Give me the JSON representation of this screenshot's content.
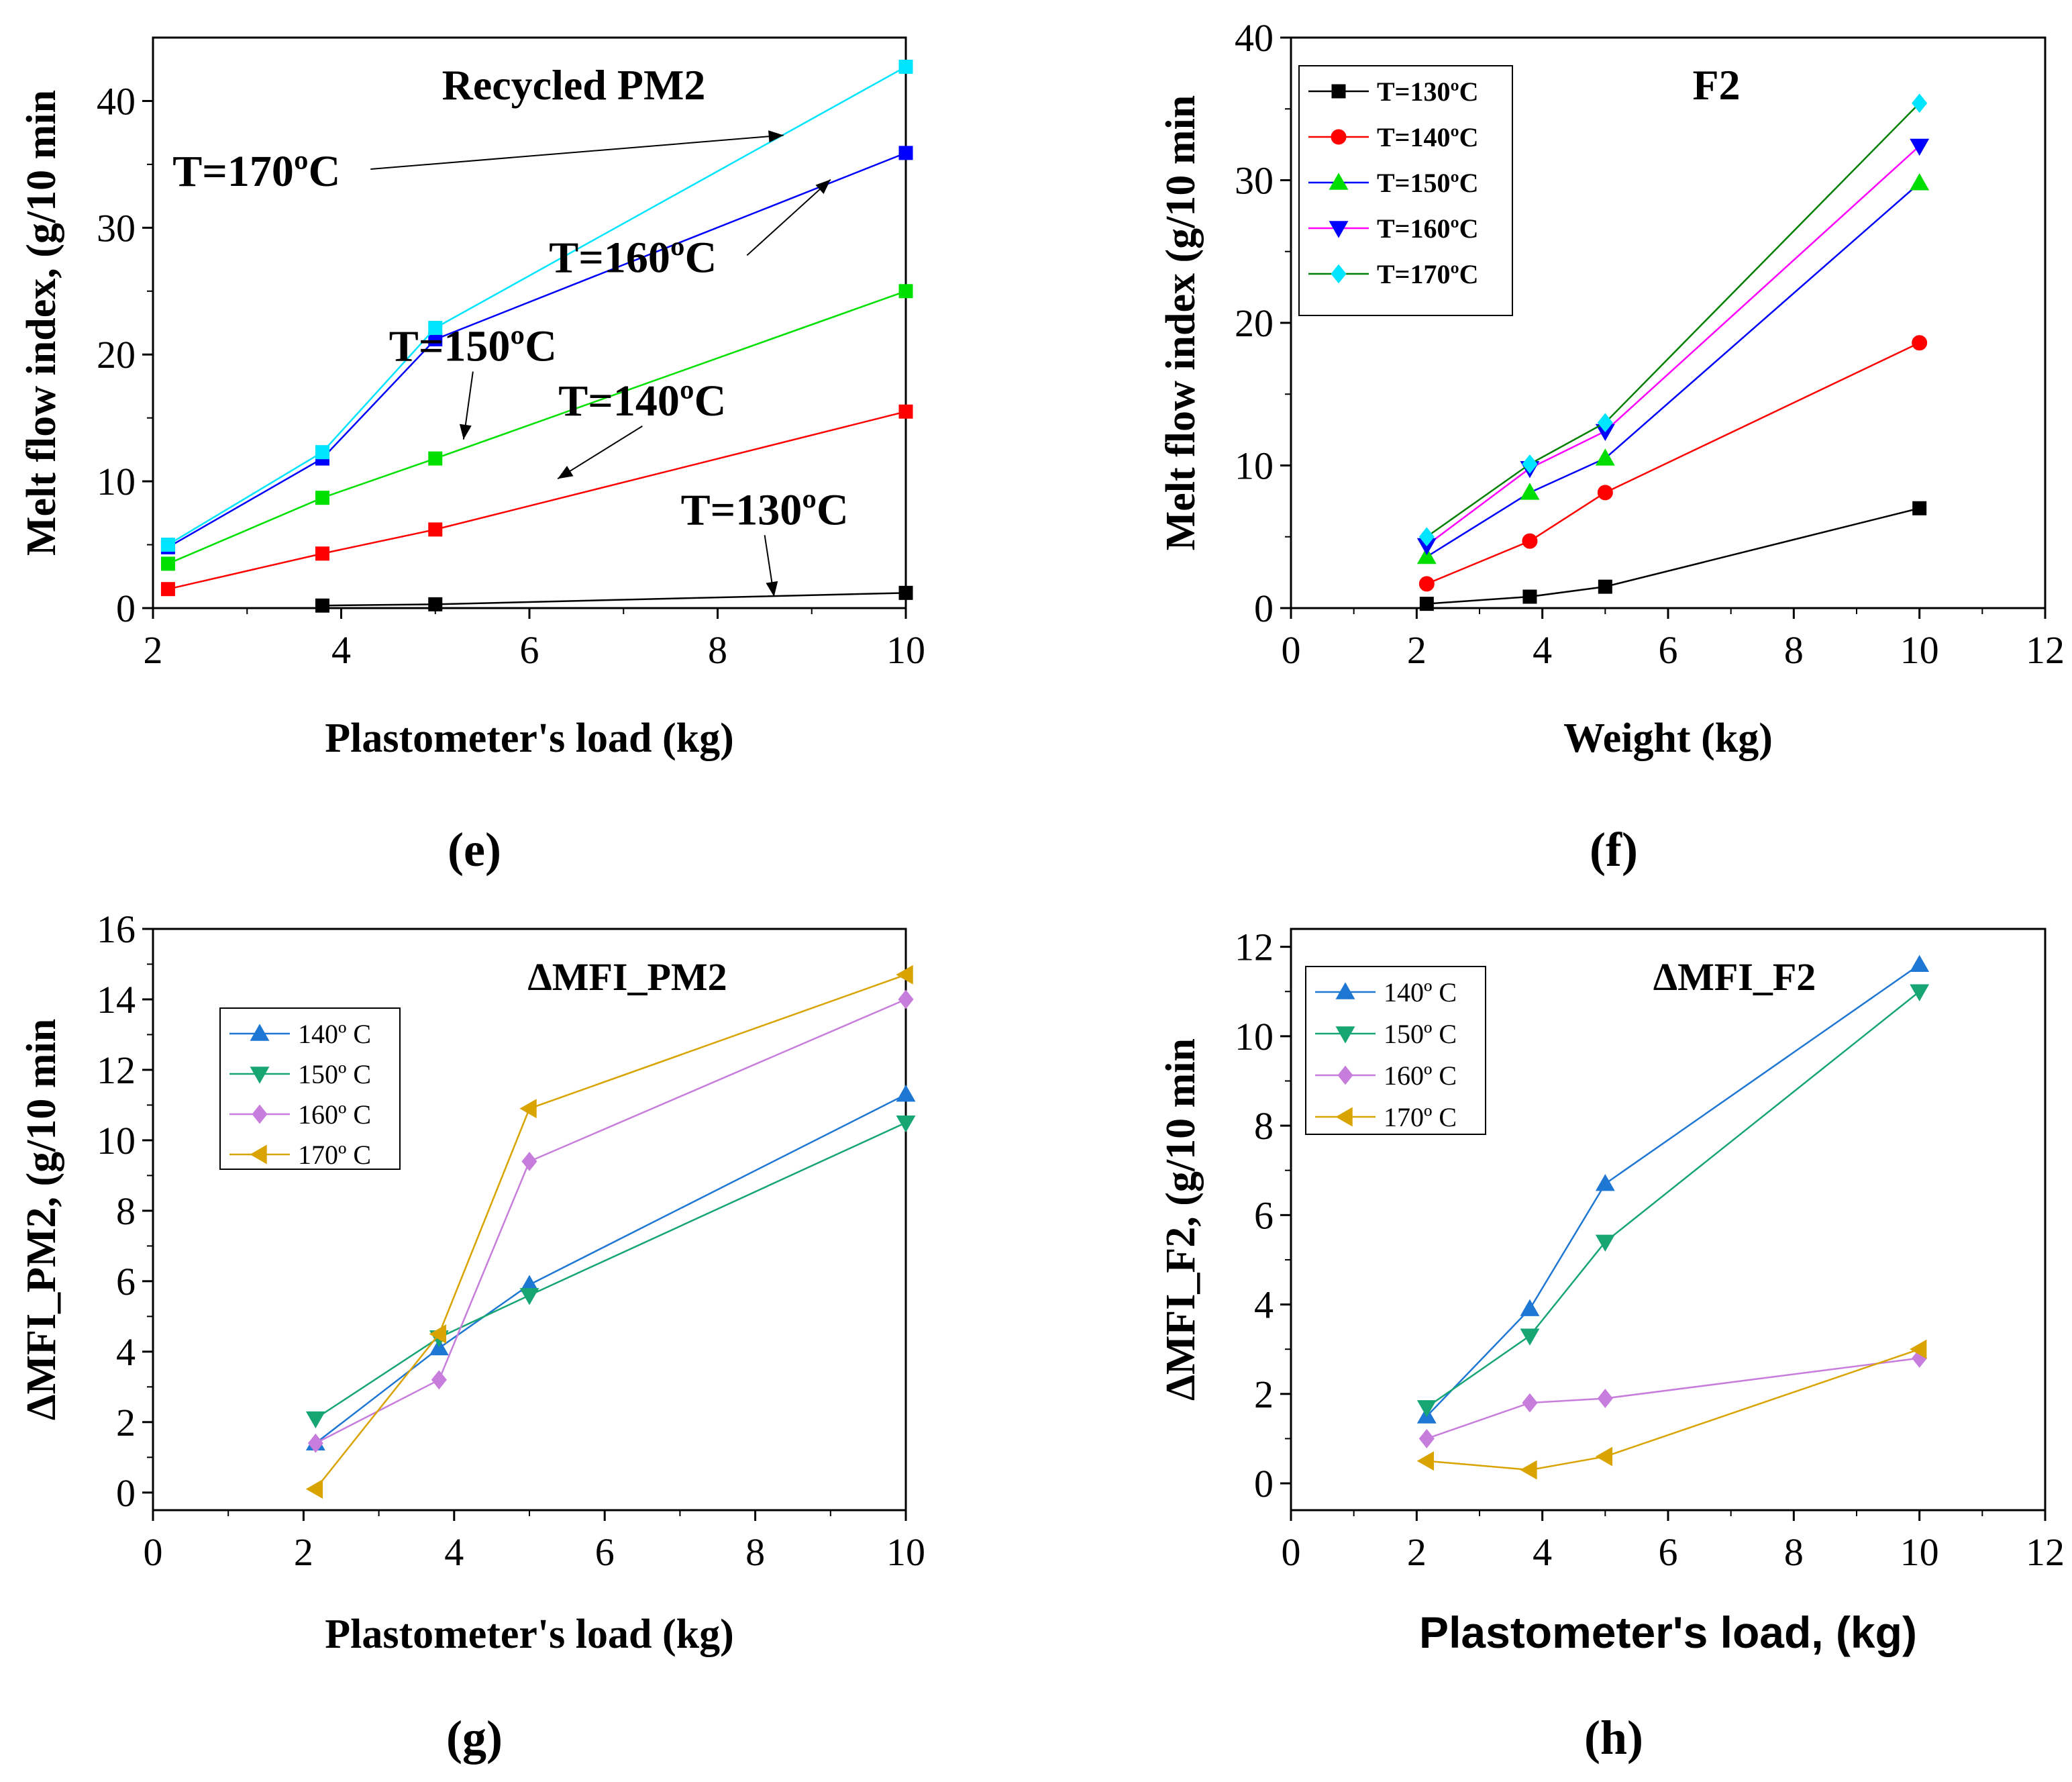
{
  "chart_data": [
    {
      "panel_label": "(e)",
      "type": "line",
      "title": "Recycled PM2",
      "xlabel": "Plastometer's load (kg)",
      "ylabel": "Melt flow index, (g/10 min",
      "xlim": [
        2,
        10
      ],
      "ylim": [
        0,
        45
      ],
      "xticks": [
        2,
        4,
        6,
        8,
        10
      ],
      "yticks": [
        0,
        10,
        20,
        30,
        40
      ],
      "legend": "none",
      "series": [
        {
          "color": "#000000",
          "marker": "square",
          "x": [
            3.8,
            5,
            10
          ],
          "y": [
            0.2,
            0.3,
            1.2
          ]
        },
        {
          "color": "#ff0000",
          "marker": "square",
          "x": [
            2.16,
            3.8,
            5,
            10
          ],
          "y": [
            1.5,
            4.3,
            6.2,
            15.5
          ]
        },
        {
          "color": "#00e000",
          "marker": "square",
          "x": [
            2.16,
            3.8,
            5,
            10
          ],
          "y": [
            3.5,
            8.7,
            11.8,
            25.0
          ]
        },
        {
          "color": "#0000ff",
          "marker": "square",
          "x": [
            2.16,
            3.8,
            5,
            10
          ],
          "y": [
            4.8,
            11.8,
            21.2,
            35.9
          ]
        },
        {
          "color": "#00e5ff",
          "marker": "square",
          "x": [
            2.16,
            3.8,
            5,
            10
          ],
          "y": [
            5.0,
            12.3,
            22.1,
            42.7
          ]
        }
      ],
      "annotations": [
        {
          "label": "T=170ºC",
          "text_at": [
            3.1,
            33.3
          ],
          "arrow_to": [
            8.7,
            37.3
          ]
        },
        {
          "label": "T=160ºC",
          "text_at": [
            7.1,
            26.5
          ],
          "arrow_to": [
            9.2,
            33.8
          ]
        },
        {
          "label": "T=150ºC",
          "text_at": [
            5.4,
            19.5
          ],
          "arrow_to": [
            5.3,
            13.3
          ]
        },
        {
          "label": "T=140ºC",
          "text_at": [
            7.2,
            15.2
          ],
          "arrow_to": [
            6.3,
            10.2
          ]
        },
        {
          "label": "T=130ºC",
          "text_at": [
            8.5,
            6.6
          ],
          "arrow_to": [
            8.6,
            0.9
          ]
        }
      ]
    },
    {
      "panel_label": "(f)",
      "type": "line",
      "title": "F2",
      "xlabel": "Weight (kg)",
      "ylabel": "Melt flow index (g/10 min",
      "xlim": [
        0,
        12
      ],
      "ylim": [
        0,
        40
      ],
      "xticks": [
        0,
        2,
        4,
        6,
        8,
        10,
        12
      ],
      "yticks": [
        0,
        10,
        20,
        30,
        40
      ],
      "legend": "top-left",
      "series": [
        {
          "name": "T=130ºC",
          "color": "#000000",
          "marker": "square",
          "x": [
            2.16,
            3.8,
            5,
            10
          ],
          "y": [
            0.3,
            0.8,
            1.5,
            7.0
          ]
        },
        {
          "name": "T=140ºC",
          "color": "#ff0000",
          "marker": "circle",
          "x": [
            2.16,
            3.8,
            5,
            10
          ],
          "y": [
            1.7,
            4.7,
            8.1,
            18.6
          ]
        },
        {
          "name": "T=150ºC",
          "color": "#00dd00",
          "marker": "triangle-up",
          "x": [
            2.16,
            3.8,
            5,
            10
          ],
          "y": [
            3.6,
            8.1,
            10.5,
            29.8
          ]
        },
        {
          "name": "T=160ºC",
          "color": "#0000ff",
          "marker": "triangle-down",
          "x": [
            2.16,
            3.8,
            5,
            10
          ],
          "y": [
            4.4,
            9.8,
            12.4,
            32.4
          ]
        },
        {
          "name": "T=170ºC",
          "color": "#00e5ff",
          "marker": "diamond",
          "x": [
            2.16,
            3.8,
            5,
            10
          ],
          "y": [
            5.0,
            10.1,
            13.0,
            35.4
          ]
        }
      ],
      "line_colors": [
        "#000000",
        "#ff0000",
        "#0000ff",
        "#ff00ff",
        "#008000"
      ]
    },
    {
      "panel_label": "(g)",
      "type": "line",
      "title": "ΔMFI_PM2",
      "xlabel": "Plastometer's load (kg)",
      "ylabel": "ΔMFI_PM2, (g/10 min",
      "xlim": [
        0,
        10
      ],
      "ylim": [
        -0.5,
        16
      ],
      "xticks": [
        0,
        2,
        4,
        6,
        8,
        10
      ],
      "yticks": [
        0,
        2,
        4,
        6,
        8,
        10,
        12,
        14,
        16
      ],
      "legend": "left",
      "series": [
        {
          "name": "140º C",
          "color": "#1f77d4",
          "marker": "triangle-up",
          "x": [
            2.16,
            3.8,
            5,
            10
          ],
          "y": [
            1.4,
            4.1,
            5.9,
            11.3
          ]
        },
        {
          "name": "150º C",
          "color": "#17a673",
          "marker": "triangle-down",
          "x": [
            2.16,
            3.8,
            5,
            10
          ],
          "y": [
            2.1,
            4.4,
            5.6,
            10.5
          ]
        },
        {
          "name": "160º C",
          "color": "#c77ddc",
          "marker": "diamond",
          "x": [
            2.16,
            3.8,
            5,
            10
          ],
          "y": [
            1.4,
            3.2,
            9.4,
            14.0
          ]
        },
        {
          "name": "170º C",
          "color": "#d9a300",
          "marker": "triangle-left",
          "x": [
            2.16,
            3.8,
            5,
            10
          ],
          "y": [
            0.1,
            4.5,
            10.9,
            14.7
          ]
        }
      ]
    },
    {
      "panel_label": "(h)",
      "type": "line",
      "title": "ΔMFI_F2",
      "xlabel": "Plastometer's load, (kg)",
      "ylabel": "ΔMFI_F2, (g/10 min",
      "xlim": [
        0,
        12
      ],
      "ylim": [
        -0.6,
        12.4
      ],
      "xticks": [
        0,
        2,
        4,
        6,
        8,
        10,
        12
      ],
      "yticks": [
        0,
        2,
        4,
        6,
        8,
        10,
        12
      ],
      "legend": "top-left",
      "series": [
        {
          "name": "140º C",
          "color": "#1f77d4",
          "marker": "triangle-up",
          "x": [
            2.16,
            3.8,
            5,
            10
          ],
          "y": [
            1.5,
            3.9,
            6.7,
            11.6
          ]
        },
        {
          "name": "150º C",
          "color": "#17a673",
          "marker": "triangle-down",
          "x": [
            2.16,
            3.8,
            5,
            10
          ],
          "y": [
            1.7,
            3.3,
            5.4,
            11.0
          ]
        },
        {
          "name": "160º C",
          "color": "#c77ddc",
          "marker": "diamond",
          "x": [
            2.16,
            3.8,
            5,
            10
          ],
          "y": [
            1.0,
            1.8,
            1.9,
            2.8
          ]
        },
        {
          "name": "170º C",
          "color": "#d9a300",
          "marker": "triangle-left",
          "x": [
            2.16,
            3.8,
            5,
            10
          ],
          "y": [
            0.5,
            0.3,
            0.6,
            3.0
          ]
        }
      ]
    }
  ]
}
